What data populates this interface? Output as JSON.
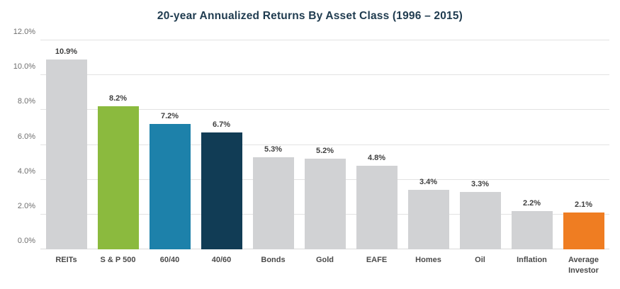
{
  "chart_data": {
    "type": "bar",
    "title": "20-year Annualized Returns By Asset Class (1996 – 2015)",
    "categories": [
      "REITs",
      "S & P 500",
      "60/40",
      "40/60",
      "Bonds",
      "Gold",
      "EAFE",
      "Homes",
      "Oil",
      "Inflation",
      "Average Investor"
    ],
    "values": [
      10.9,
      8.2,
      7.2,
      6.7,
      5.3,
      5.2,
      4.8,
      3.4,
      3.3,
      2.2,
      2.1
    ],
    "value_labels": [
      "10.9%",
      "8.2%",
      "7.2%",
      "6.7%",
      "5.3%",
      "5.2%",
      "4.8%",
      "3.4%",
      "3.3%",
      "2.2%",
      "2.1%"
    ],
    "bar_colors": [
      "#d1d2d4",
      "#8bba3e",
      "#1d81aa",
      "#113c55",
      "#d1d2d4",
      "#d1d2d4",
      "#d1d2d4",
      "#d1d2d4",
      "#d1d2d4",
      "#d1d2d4",
      "#ef7d22"
    ],
    "y_ticks": [
      "0.0%",
      "2.0%",
      "4.0%",
      "6.0%",
      "8.0%",
      "10.0%",
      "12.0%"
    ],
    "ylim": [
      0,
      12
    ],
    "grid": true,
    "legend": "none",
    "xlabel": "",
    "ylabel": ""
  },
  "colors": {
    "title": "#1f3b4f",
    "gridline": "#e3e3e3",
    "axis_text": "#6e6e6e",
    "value_text": "#3f3f3f",
    "category_text": "#4a4a4a",
    "default_bar": "#d1d2d4",
    "highlight_green": "#8bba3e",
    "highlight_blue": "#1d81aa",
    "highlight_navy": "#113c55",
    "highlight_orange": "#ef7d22",
    "background": "#ffffff"
  }
}
